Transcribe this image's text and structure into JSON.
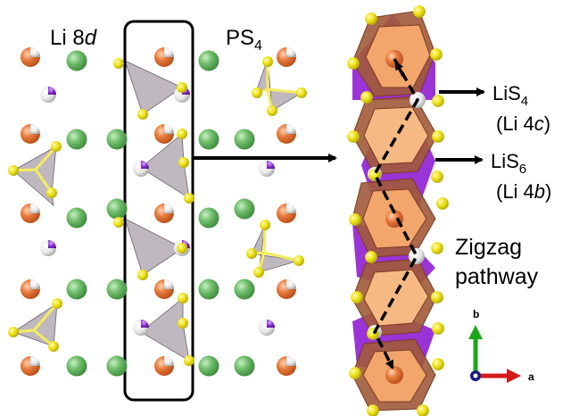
{
  "labels": {
    "li8d_prefix": "Li 8",
    "li8d_italic": "d",
    "ps4_main": "PS",
    "ps4_sub": "4",
    "lis4_main": "LiS",
    "lis4_sub": "4",
    "lis4_site_open": "(Li 4",
    "lis4_site_italic": "c",
    "lis4_site_close": ")",
    "lis6_main": "LiS",
    "lis6_sub": "6",
    "lis6_site_open": "(Li 4",
    "lis6_site_italic": "b",
    "lis6_site_close": ")",
    "zigzag_line1": "Zigzag",
    "zigzag_line2": "pathway",
    "axis_b": "b",
    "axis_a": "a"
  },
  "colors": {
    "sulfur": "#e9e010",
    "li8d_orange": "#e06a2c",
    "green_atom": "#6cb86a",
    "li4c_purple": "#8a2fd0",
    "ps4_tetra_grey": "#8b7d88",
    "liS6_octa_brown": "#a15a3a",
    "liS4_tetra_orange": "#f2a66c",
    "liS4_purple_face": "#9b34d6",
    "axis_b_green": "#1aa81a",
    "axis_a_red": "#d41a1a",
    "axis_c_navy": "#1a1a80"
  }
}
